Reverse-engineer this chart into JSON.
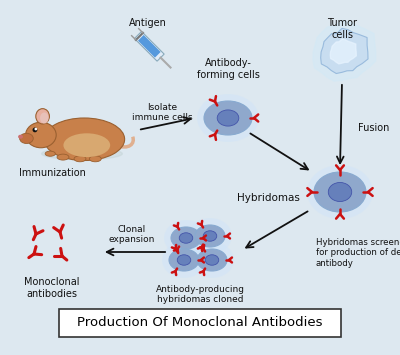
{
  "bg_color": "#dde8f0",
  "title": "Production Of Monoclonal Antibodies",
  "title_fontsize": 9.5,
  "title_box_color": "#ffffff",
  "title_border_color": "#333333",
  "labels": {
    "immunization": "Immunization",
    "antigen": "Antigen",
    "isolate": "Isolate\nimmune cells",
    "antibody_forming": "Antibody-\nforming cells",
    "tumor_cells": "Tumor\ncells",
    "fusion": "Fusion",
    "hybridomas": "Hybridomas",
    "hybridomas_screened": "Hybridomas screened\nfor production of desired\nantibody",
    "clonal": "Clonal\nexpansion",
    "antibody_producing": "Antibody-producing\nhybridomas cloned",
    "monoclonal": "Monoclonal\nantibodies"
  },
  "cell_color_outer": "#b8cce4",
  "cell_color_inner": "#8fa8cc",
  "cell_nucleus_color": "#6680bb",
  "cell_nucleus_edge": "#4455aa",
  "antibody_color": "#cc1111",
  "arrow_color": "#111111",
  "text_color": "#111111",
  "mouse_body_color": "#c8804a",
  "mouse_ear_color": "#e8b0a0",
  "tumor_color_outer": "#c8ddf0",
  "tumor_color_inner": "#e8f0f8"
}
